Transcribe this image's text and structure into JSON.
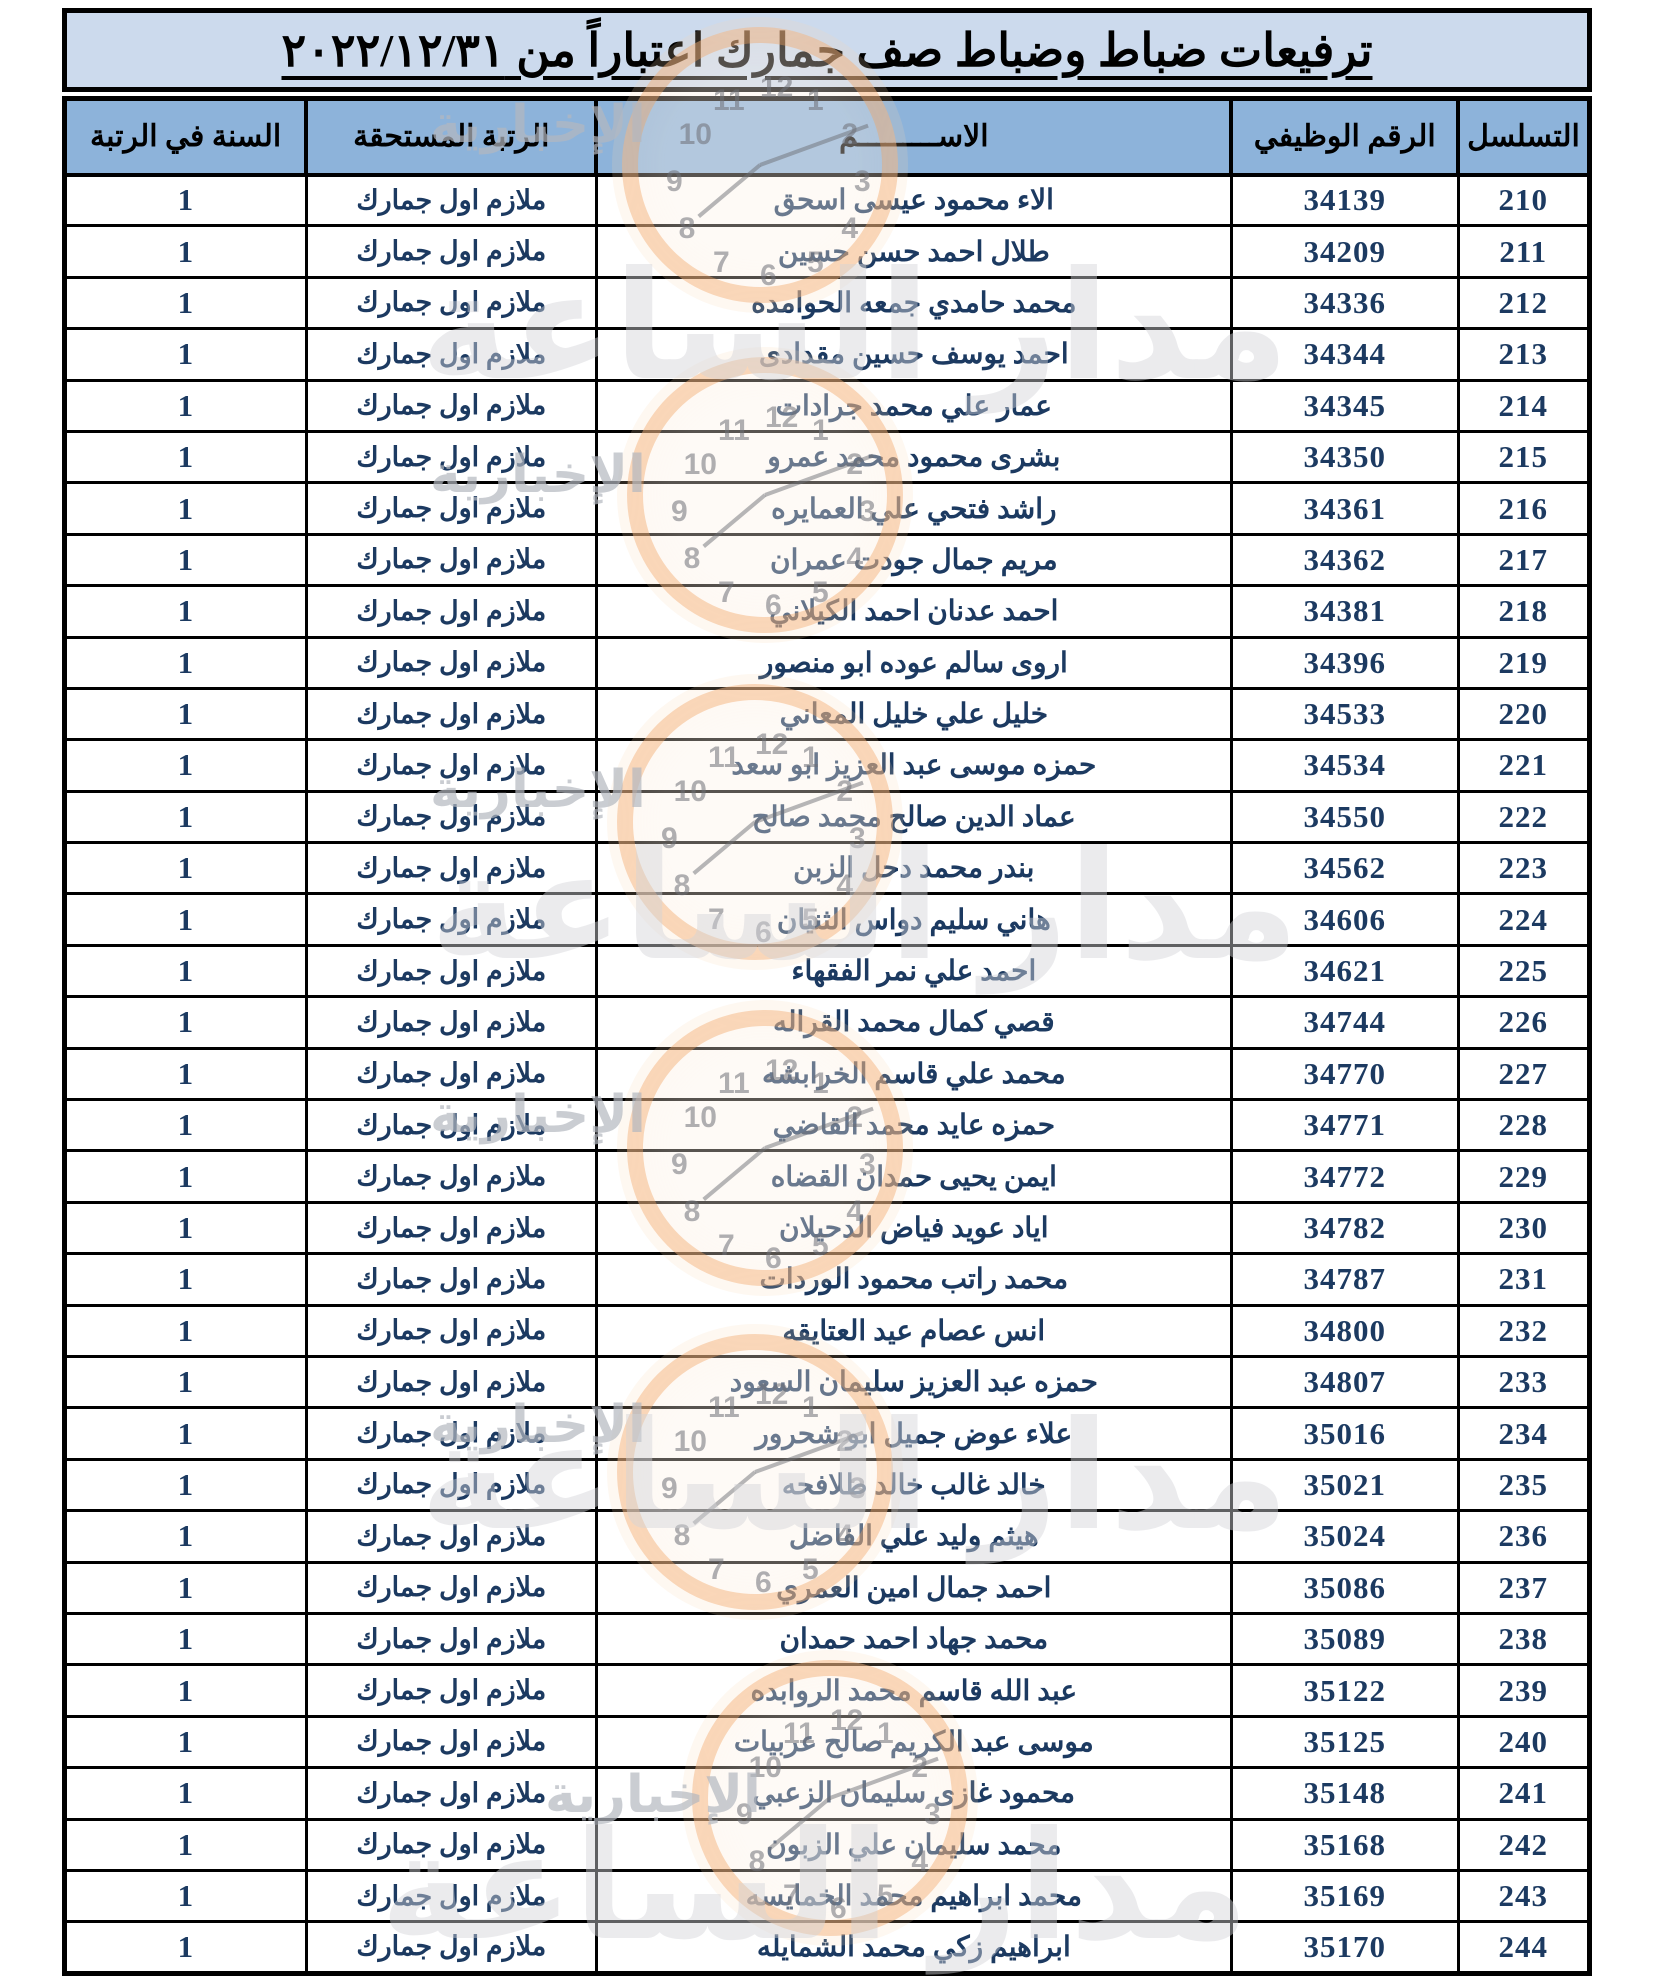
{
  "page": {
    "title": "ترفيعات ضباط وضباط صف جمارك اعتباراً من ٢٠٢٢/١٢/٣١"
  },
  "table": {
    "columns": [
      {
        "key": "serial",
        "label": "التسلسل"
      },
      {
        "key": "employee_number",
        "label": "الرقم الوظيفي"
      },
      {
        "key": "name",
        "label": "الاســـــــــم"
      },
      {
        "key": "rank",
        "label": "الرتبة المستحقة"
      },
      {
        "key": "year_in_rank",
        "label": "السنة في الرتبة"
      }
    ],
    "rows": [
      {
        "serial": "210",
        "employee_number": "34139",
        "name": "الاء محمود عيسى اسحق",
        "rank": "ملازم اول جمارك",
        "year_in_rank": "1"
      },
      {
        "serial": "211",
        "employee_number": "34209",
        "name": "طلال احمد حسن حسين",
        "rank": "ملازم اول جمارك",
        "year_in_rank": "1"
      },
      {
        "serial": "212",
        "employee_number": "34336",
        "name": "محمد حامدي جمعه الحوامده",
        "rank": "ملازم اول جمارك",
        "year_in_rank": "1"
      },
      {
        "serial": "213",
        "employee_number": "34344",
        "name": "احمد يوسف حسين مقدادى",
        "rank": "ملازم اول جمارك",
        "year_in_rank": "1"
      },
      {
        "serial": "214",
        "employee_number": "34345",
        "name": "عمار علي محمد جرادات",
        "rank": "ملازم اول جمارك",
        "year_in_rank": "1"
      },
      {
        "serial": "215",
        "employee_number": "34350",
        "name": "بشرى محمود محمد عمرو",
        "rank": "ملازم اول جمارك",
        "year_in_rank": "1"
      },
      {
        "serial": "216",
        "employee_number": "34361",
        "name": "راشد فتحي علي العمايره",
        "rank": "ملازم اول جمارك",
        "year_in_rank": "1"
      },
      {
        "serial": "217",
        "employee_number": "34362",
        "name": "مريم جمال جودت عمران",
        "rank": "ملازم اول جمارك",
        "year_in_rank": "1"
      },
      {
        "serial": "218",
        "employee_number": "34381",
        "name": "احمد عدنان احمد الكيلاني",
        "rank": "ملازم اول جمارك",
        "year_in_rank": "1"
      },
      {
        "serial": "219",
        "employee_number": "34396",
        "name": "اروى سالم عوده ابو منصور",
        "rank": "ملازم اول جمارك",
        "year_in_rank": "1"
      },
      {
        "serial": "220",
        "employee_number": "34533",
        "name": "خليل علي خليل المعاني",
        "rank": "ملازم اول جمارك",
        "year_in_rank": "1"
      },
      {
        "serial": "221",
        "employee_number": "34534",
        "name": "حمزه موسى عبد العزيز ابو سعد",
        "rank": "ملازم اول جمارك",
        "year_in_rank": "1"
      },
      {
        "serial": "222",
        "employee_number": "34550",
        "name": "عماد الدين صالح محمد صالح",
        "rank": "ملازم اول جمارك",
        "year_in_rank": "1"
      },
      {
        "serial": "223",
        "employee_number": "34562",
        "name": "بندر محمد دحل الزبن",
        "rank": "ملازم اول جمارك",
        "year_in_rank": "1"
      },
      {
        "serial": "224",
        "employee_number": "34606",
        "name": "هاني سليم دواس الثنيان",
        "rank": "ملازم اول جمارك",
        "year_in_rank": "1"
      },
      {
        "serial": "225",
        "employee_number": "34621",
        "name": "احمد علي نمر الفقهاء",
        "rank": "ملازم اول جمارك",
        "year_in_rank": "1"
      },
      {
        "serial": "226",
        "employee_number": "34744",
        "name": "قصي كمال محمد القراله",
        "rank": "ملازم اول جمارك",
        "year_in_rank": "1"
      },
      {
        "serial": "227",
        "employee_number": "34770",
        "name": "محمد علي قاسم الخرابشه",
        "rank": "ملازم اول جمارك",
        "year_in_rank": "1"
      },
      {
        "serial": "228",
        "employee_number": "34771",
        "name": "حمزه عايد محمد القاضي",
        "rank": "ملازم اول جمارك",
        "year_in_rank": "1"
      },
      {
        "serial": "229",
        "employee_number": "34772",
        "name": "ايمن يحيى حمدان القضاه",
        "rank": "ملازم اول جمارك",
        "year_in_rank": "1"
      },
      {
        "serial": "230",
        "employee_number": "34782",
        "name": "اياد عويد فياض الدحيلان",
        "rank": "ملازم اول جمارك",
        "year_in_rank": "1"
      },
      {
        "serial": "231",
        "employee_number": "34787",
        "name": "محمد راتب محمود الوردات",
        "rank": "ملازم اول جمارك",
        "year_in_rank": "1"
      },
      {
        "serial": "232",
        "employee_number": "34800",
        "name": "انس عصام عيد العتايقه",
        "rank": "ملازم اول جمارك",
        "year_in_rank": "1"
      },
      {
        "serial": "233",
        "employee_number": "34807",
        "name": "حمزه عبد العزيز سليمان السعود",
        "rank": "ملازم اول جمارك",
        "year_in_rank": "1"
      },
      {
        "serial": "234",
        "employee_number": "35016",
        "name": "علاء عوض جميل ابو شحرور",
        "rank": "ملازم اول جمارك",
        "year_in_rank": "1"
      },
      {
        "serial": "235",
        "employee_number": "35021",
        "name": "خالد غالب خالد طلافحه",
        "rank": "ملازم اول جمارك",
        "year_in_rank": "1"
      },
      {
        "serial": "236",
        "employee_number": "35024",
        "name": "هيثم وليد علي الفاضل",
        "rank": "ملازم اول جمارك",
        "year_in_rank": "1"
      },
      {
        "serial": "237",
        "employee_number": "35086",
        "name": "احمد جمال امين العمري",
        "rank": "ملازم اول جمارك",
        "year_in_rank": "1"
      },
      {
        "serial": "238",
        "employee_number": "35089",
        "name": "محمد جهاد احمد حمدان",
        "rank": "ملازم اول جمارك",
        "year_in_rank": "1"
      },
      {
        "serial": "239",
        "employee_number": "35122",
        "name": "عبد الله قاسم محمد الروابده",
        "rank": "ملازم اول جمارك",
        "year_in_rank": "1"
      },
      {
        "serial": "240",
        "employee_number": "35125",
        "name": "موسى عبد الكريم صالح عربيات",
        "rank": "ملازم اول جمارك",
        "year_in_rank": "1"
      },
      {
        "serial": "241",
        "employee_number": "35148",
        "name": "محمود غازى سليمان الزعبي",
        "rank": "ملازم اول جمارك",
        "year_in_rank": "1"
      },
      {
        "serial": "242",
        "employee_number": "35168",
        "name": "محمد سليمان علي الزبون",
        "rank": "ملازم اول جمارك",
        "year_in_rank": "1"
      },
      {
        "serial": "243",
        "employee_number": "35169",
        "name": "محمد ابراهيم محمد الخمايسه",
        "rank": "ملازم اول جمارك",
        "year_in_rank": "1"
      },
      {
        "serial": "244",
        "employee_number": "35170",
        "name": "ابراهيم زكي محمد الشمايله",
        "rank": "ملازم اول جمارك",
        "year_in_rank": "1"
      }
    ]
  },
  "watermark": {
    "agency_name": "مدار الساعة",
    "agency_tagline": "الإخبارية",
    "clock_numbers": [
      "12",
      "1",
      "2",
      "3",
      "4",
      "5",
      "6",
      "7",
      "8",
      "9",
      "10",
      "11"
    ]
  },
  "colors": {
    "title_bg": "#ccdaed",
    "header_bg": "#8db3da",
    "cell_text": "#1c3a61",
    "border": "#000000",
    "watermark_orange": "#f2a25f"
  }
}
